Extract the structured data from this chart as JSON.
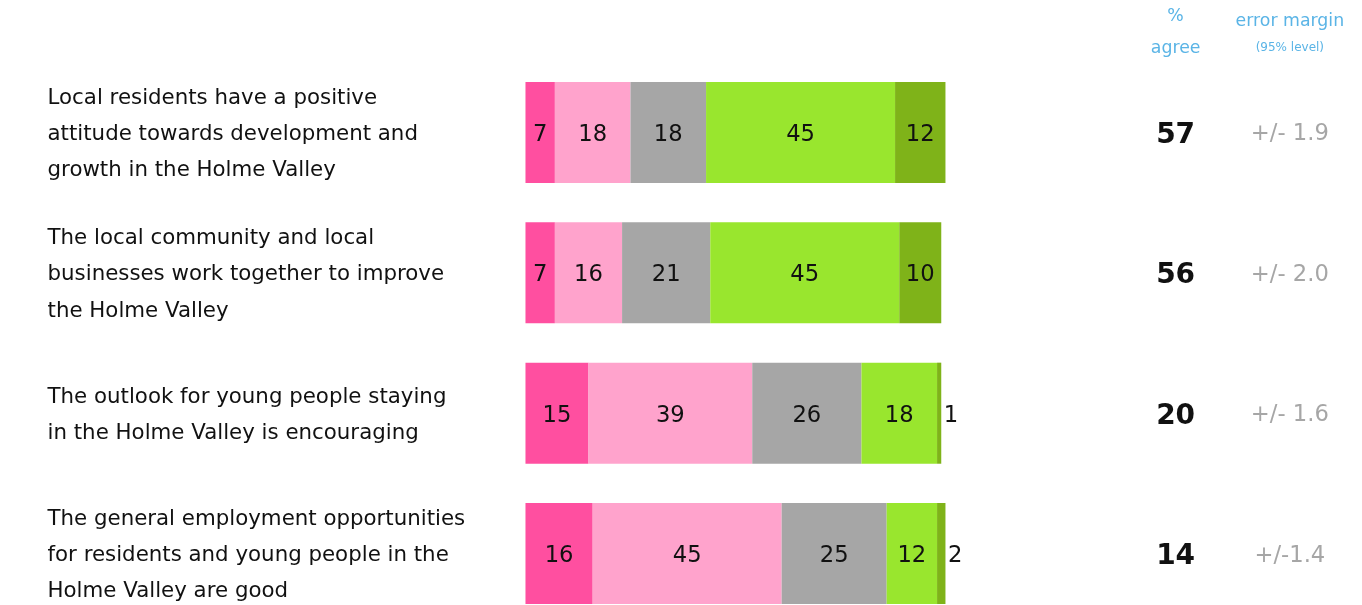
{
  "chart_data": {
    "type": "bar",
    "orientation": "horizontal",
    "stacked": true,
    "data_labels": true,
    "grid": false,
    "categories": [
      "Local residents have a positive attitude towards development and growth in the Holme Valley",
      "The local community and local businesses work together to improve the Holme Valley",
      "The outlook for young people staying in the Holme Valley is encouraging",
      "The general employment opportunities for residents and young people in the Holme Valley are good"
    ],
    "series": [
      {
        "color": "#ff4fa0",
        "values": [
          7,
          7,
          15,
          16
        ]
      },
      {
        "color": "#ffa3cc",
        "values": [
          18,
          16,
          39,
          45
        ]
      },
      {
        "color": "#a6a6a6",
        "values": [
          18,
          21,
          26,
          25
        ]
      },
      {
        "color": "#99e62e",
        "values": [
          45,
          45,
          18,
          12
        ]
      },
      {
        "color": "#7fb319",
        "values": [
          12,
          10,
          1,
          2
        ]
      }
    ],
    "annotations": [
      "%\nagree",
      "error margin",
      "(95% level)",
      "57",
      "+/- 1.9",
      "56",
      "+/- 2.0",
      "20",
      "+/- 1.6",
      "14",
      "+/-1.4"
    ]
  }
}
